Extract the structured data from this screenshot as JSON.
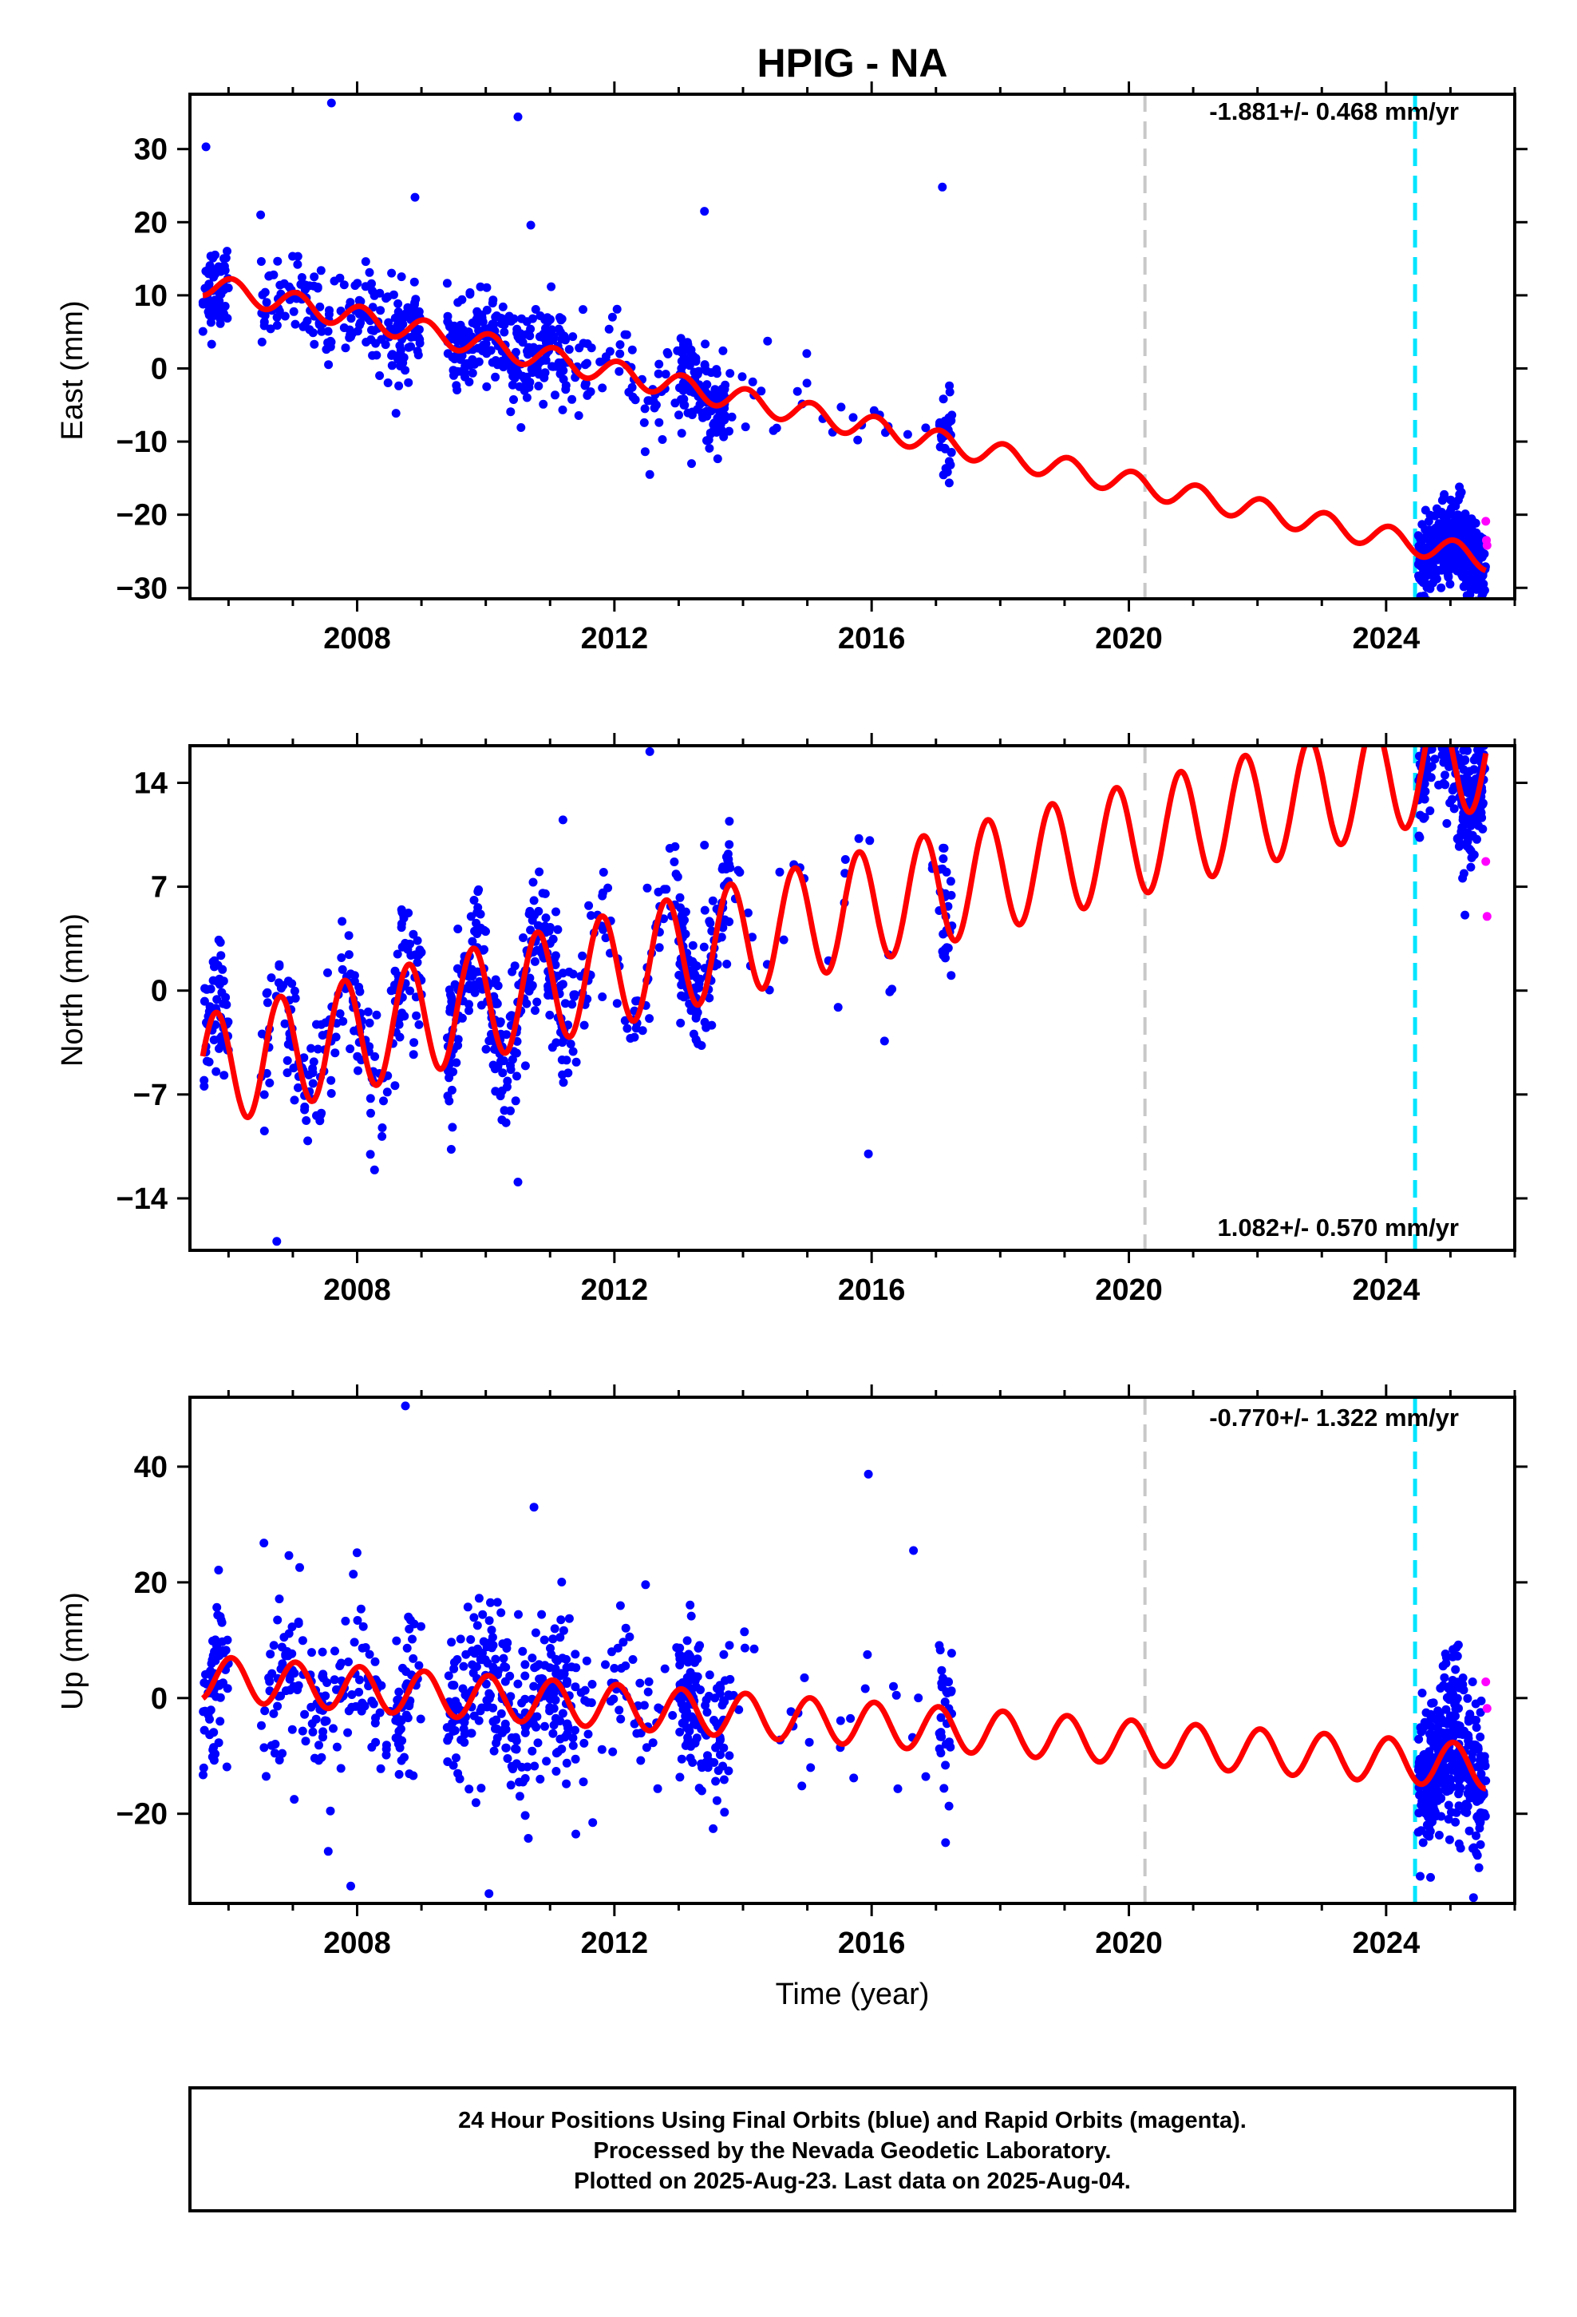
{
  "title": "HPIG - NA",
  "xlabel": "Time (year)",
  "footer": {
    "line1": "24 Hour Positions Using Final Orbits (blue) and Rapid Orbits (magenta).",
    "line2": "Processed by the Nevada Geodetic Laboratory.",
    "line3": "Plotted on 2025-Aug-23. Last data on 2025-Aug-04."
  },
  "colors": {
    "final_orbits": "#0000ff",
    "rapid_orbits": "#ff00ff",
    "model": "#ff0000",
    "equipment_change": "#c8c8c8",
    "event": "#00e5ff"
  },
  "chart_data": [
    {
      "type": "scatter",
      "panel": "east",
      "ylabel": "East (mm)",
      "rate_label": "-1.881+/- 0.468 mm/yr",
      "xlim": [
        2005.4,
        2026.0
      ],
      "ylim": [
        -31.5,
        37.5
      ],
      "x_ticks": [
        2008,
        2012,
        2016,
        2020,
        2024
      ],
      "y_ticks": [
        -30,
        -20,
        -10,
        0,
        10,
        20,
        30
      ],
      "y_tick_labels": [
        "−30",
        "−20",
        "−10",
        "0",
        "10",
        "20",
        "30"
      ],
      "vertical_lines": [
        {
          "x": 2020.25,
          "kind": "equipment_change"
        },
        {
          "x": 2024.45,
          "kind": "event"
        }
      ],
      "series": [
        {
          "kind": "final_orbits",
          "segments": [
            {
              "x0": 2005.6,
              "x1": 2006.0,
              "n": 60
            },
            {
              "x0": 2006.5,
              "x1": 2008.7,
              "n": 150
            },
            {
              "x0": 2008.6,
              "x1": 2009.0,
              "n": 45
            },
            {
              "x0": 2009.4,
              "x1": 2011.3,
              "n": 260
            },
            {
              "x0": 2011.3,
              "x1": 2013.3,
              "n": 80
            },
            {
              "x0": 2013.0,
              "x1": 2013.8,
              "n": 110
            },
            {
              "x0": 2013.8,
              "x1": 2017.0,
              "n": 25
            },
            {
              "x0": 2017.05,
              "x1": 2017.25,
              "n": 30
            },
            {
              "x0": 2024.5,
              "x1": 2025.55,
              "n": 380
            }
          ],
          "jitter": 3.0,
          "outliers": [
            {
              "x": 2005.65,
              "y": 30.3
            },
            {
              "x": 2007.6,
              "y": 36.3
            },
            {
              "x": 2010.5,
              "y": 34.4
            },
            {
              "x": 2010.7,
              "y": 19.6
            },
            {
              "x": 2008.9,
              "y": 23.4
            },
            {
              "x": 2013.4,
              "y": 21.5
            },
            {
              "x": 2017.1,
              "y": 24.8
            },
            {
              "x": 2006.5,
              "y": 21.0
            },
            {
              "x": 2012.55,
              "y": -14.5
            },
            {
              "x": 2013.2,
              "y": -13.0
            }
          ]
        },
        {
          "kind": "rapid_orbits",
          "points": [
            {
              "x": 2025.55,
              "y": -20.9
            },
            {
              "x": 2025.56,
              "y": -23.5
            },
            {
              "x": 2025.57,
              "y": -24.2
            }
          ]
        },
        {
          "kind": "model",
          "name": "",
          "trend_rate": -1.881,
          "reference_year": 2005.6,
          "offset": 11.5,
          "annual_amplitude": 1.6,
          "phase": 1.2
        }
      ]
    },
    {
      "type": "scatter",
      "panel": "north",
      "ylabel": "North (mm)",
      "rate_label": "1.082+/- 0.570 mm/yr",
      "xlim": [
        2005.4,
        2026.0
      ],
      "ylim": [
        -17.5,
        16.5
      ],
      "x_ticks": [
        2008,
        2012,
        2016,
        2020,
        2024
      ],
      "y_ticks": [
        -14,
        -7,
        0,
        7,
        14
      ],
      "y_tick_labels": [
        "−14",
        "−7",
        "0",
        "7",
        "14"
      ],
      "vertical_lines": [
        {
          "x": 2020.25,
          "kind": "equipment_change"
        },
        {
          "x": 2024.45,
          "kind": "event"
        }
      ],
      "series": [
        {
          "kind": "final_orbits",
          "segments": [
            {
              "x0": 2005.6,
              "x1": 2006.0,
              "n": 60
            },
            {
              "x0": 2006.5,
              "x1": 2008.7,
              "n": 150
            },
            {
              "x0": 2008.6,
              "x1": 2009.0,
              "n": 45
            },
            {
              "x0": 2009.4,
              "x1": 2011.3,
              "n": 260
            },
            {
              "x0": 2011.3,
              "x1": 2013.3,
              "n": 80
            },
            {
              "x0": 2013.0,
              "x1": 2013.8,
              "n": 110
            },
            {
              "x0": 2013.8,
              "x1": 2017.0,
              "n": 25
            },
            {
              "x0": 2017.05,
              "x1": 2017.25,
              "n": 30
            },
            {
              "x0": 2024.5,
              "x1": 2025.55,
              "n": 380
            }
          ],
          "jitter": 2.2,
          "outliers": [
            {
              "x": 2012.55,
              "y": 16.1
            },
            {
              "x": 2006.75,
              "y": -16.9
            },
            {
              "x": 2011.2,
              "y": 11.5
            },
            {
              "x": 2015.95,
              "y": -11.0
            },
            {
              "x": 2010.5,
              "y": -12.9
            },
            {
              "x": 2013.4,
              "y": 9.8
            },
            {
              "x": 2017.1,
              "y": 8.2
            },
            {
              "x": 2016.2,
              "y": -3.4
            }
          ]
        },
        {
          "kind": "rapid_orbits",
          "points": [
            {
              "x": 2025.55,
              "y": 8.7
            },
            {
              "x": 2025.57,
              "y": 5.0
            }
          ]
        },
        {
          "kind": "model",
          "name": "",
          "trend_rate": 1.082,
          "reference_year": 2005.6,
          "offset": -5.5,
          "annual_amplitude": 3.8,
          "phase": 2.8
        }
      ]
    },
    {
      "type": "scatter",
      "panel": "up",
      "ylabel": "Up (mm)",
      "rate_label": "-0.770+/- 1.322 mm/yr",
      "xlim": [
        2005.4,
        2026.0
      ],
      "ylim": [
        -35.5,
        52.0
      ],
      "x_ticks": [
        2008,
        2012,
        2016,
        2020,
        2024
      ],
      "y_ticks": [
        -20,
        0,
        20,
        40
      ],
      "y_tick_labels": [
        "−20",
        "0",
        "20",
        "40"
      ],
      "vertical_lines": [
        {
          "x": 2020.25,
          "kind": "equipment_change"
        },
        {
          "x": 2024.45,
          "kind": "event"
        }
      ],
      "series": [
        {
          "kind": "final_orbits",
          "segments": [
            {
              "x0": 2005.6,
              "x1": 2006.0,
              "n": 60
            },
            {
              "x0": 2006.5,
              "x1": 2008.7,
              "n": 150
            },
            {
              "x0": 2008.6,
              "x1": 2009.0,
              "n": 45
            },
            {
              "x0": 2009.4,
              "x1": 2011.3,
              "n": 260
            },
            {
              "x0": 2011.3,
              "x1": 2013.3,
              "n": 80
            },
            {
              "x0": 2013.0,
              "x1": 2013.8,
              "n": 110
            },
            {
              "x0": 2013.8,
              "x1": 2017.0,
              "n": 25
            },
            {
              "x0": 2017.05,
              "x1": 2017.25,
              "n": 30
            },
            {
              "x0": 2024.5,
              "x1": 2025.55,
              "n": 380
            }
          ],
          "jitter": 7.0,
          "outliers": [
            {
              "x": 2008.75,
              "y": 50.5
            },
            {
              "x": 2007.9,
              "y": -32.5
            },
            {
              "x": 2010.05,
              "y": -33.8
            },
            {
              "x": 2010.75,
              "y": 33.0
            },
            {
              "x": 2015.95,
              "y": 38.7
            },
            {
              "x": 2016.65,
              "y": 25.5
            },
            {
              "x": 2006.55,
              "y": 26.8
            },
            {
              "x": 2007.55,
              "y": -26.5
            },
            {
              "x": 2017.15,
              "y": -25.0
            },
            {
              "x": 2011.4,
              "y": -23.5
            }
          ]
        },
        {
          "kind": "rapid_orbits",
          "points": [
            {
              "x": 2025.55,
              "y": 2.8
            },
            {
              "x": 2025.57,
              "y": -1.8
            }
          ]
        },
        {
          "kind": "model",
          "name": "",
          "trend_rate": -0.77,
          "reference_year": 2005.6,
          "offset": 3.5,
          "annual_amplitude": 3.8,
          "phase": 1.3
        }
      ]
    }
  ]
}
